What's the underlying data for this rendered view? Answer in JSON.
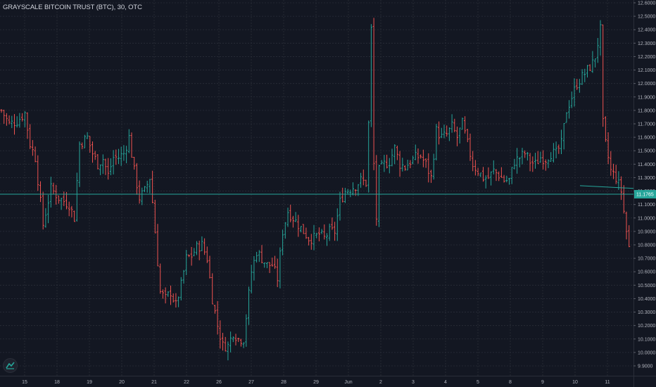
{
  "header": {
    "title": "GRAYSCALE BITCOIN TRUST (BTC), 30, OTC"
  },
  "colors": {
    "background": "#131722",
    "up": "#26a69a",
    "down": "#ef5350",
    "grid": "#2a2e39",
    "price_line": "#26a69a"
  },
  "icons": {
    "logo": "tradingview-logo-icon"
  },
  "chart_data": {
    "type": "ohlc",
    "title": "GRAYSCALE BITCOIN TRUST (BTC), 30, OTC",
    "ylim": [
      9.87,
      12.6
    ],
    "y_ticks": [
      "12.6000",
      "12.5000",
      "12.4000",
      "12.3000",
      "12.2000",
      "12.1000",
      "12.0000",
      "11.9000",
      "11.8000",
      "11.7000",
      "11.6000",
      "11.5000",
      "11.4000",
      "11.3000",
      "11.2000",
      "11.1000",
      "11.0000",
      "10.9000",
      "10.8000",
      "10.7000",
      "10.6000",
      "10.5000",
      "10.4000",
      "10.3000",
      "10.2000",
      "10.1000",
      "10.0000",
      "9.9000"
    ],
    "x_ticks": [
      "15",
      "18",
      "19",
      "20",
      "21",
      "22",
      "26",
      "27",
      "28",
      "29",
      "Jun",
      "2",
      "3",
      "4",
      "5",
      "8",
      "9",
      "10",
      "11"
    ],
    "last_price": "11.1765",
    "last_price_value": 11.1765,
    "grid": true,
    "close_path": [
      [
        0,
        11.8
      ],
      [
        3,
        11.7
      ],
      [
        6,
        11.72
      ],
      [
        9,
        11.78
      ],
      [
        11,
        11.55
      ],
      [
        13,
        11.45
      ],
      [
        16,
        10.95
      ],
      [
        19,
        11.22
      ],
      [
        22,
        11.15
      ],
      [
        26,
        11.1
      ],
      [
        28,
        11.0
      ],
      [
        30,
        11.55
      ],
      [
        33,
        11.6
      ],
      [
        35,
        11.48
      ],
      [
        37,
        11.4
      ],
      [
        39,
        11.44
      ],
      [
        41,
        11.32
      ],
      [
        43,
        11.45
      ],
      [
        45,
        11.45
      ],
      [
        47,
        11.48
      ],
      [
        49,
        11.6
      ],
      [
        51,
        11.35
      ],
      [
        53,
        11.15
      ],
      [
        55,
        11.2
      ],
      [
        57,
        11.3
      ],
      [
        58,
        11.12
      ],
      [
        61,
        10.45
      ],
      [
        63,
        10.4
      ],
      [
        65,
        10.45
      ],
      [
        67,
        10.35
      ],
      [
        69,
        10.5
      ],
      [
        71,
        10.7
      ],
      [
        73,
        10.72
      ],
      [
        75,
        10.78
      ],
      [
        77,
        10.8
      ],
      [
        79,
        10.7
      ],
      [
        81,
        10.4
      ],
      [
        83,
        10.2
      ],
      [
        85,
        10.05
      ],
      [
        87,
        10.05
      ],
      [
        89,
        10.15
      ],
      [
        91,
        10.1
      ],
      [
        93,
        10.1
      ],
      [
        96,
        10.6
      ],
      [
        98,
        10.75
      ],
      [
        100,
        10.7
      ],
      [
        102,
        10.65
      ],
      [
        104,
        10.65
      ],
      [
        106,
        10.55
      ],
      [
        108,
        10.9
      ],
      [
        110,
        11.05
      ],
      [
        112,
        11.0
      ],
      [
        114,
        10.95
      ],
      [
        116,
        10.9
      ],
      [
        118,
        10.85
      ],
      [
        120,
        10.85
      ],
      [
        122,
        10.88
      ],
      [
        124,
        10.85
      ],
      [
        126,
        10.9
      ],
      [
        128,
        10.9
      ],
      [
        130,
        11.12
      ],
      [
        132,
        11.2
      ],
      [
        134,
        11.22
      ],
      [
        136,
        11.24
      ],
      [
        138,
        11.28
      ],
      [
        140,
        11.26
      ],
      [
        141,
        11.7
      ],
      [
        142,
        12.4
      ],
      [
        143,
        11.4
      ],
      [
        144,
        11.0
      ],
      [
        145,
        11.35
      ],
      [
        147,
        11.4
      ],
      [
        149,
        11.42
      ],
      [
        151,
        11.52
      ],
      [
        153,
        11.4
      ],
      [
        155,
        11.38
      ],
      [
        157,
        11.42
      ],
      [
        159,
        11.45
      ],
      [
        161,
        11.46
      ],
      [
        163,
        11.4
      ],
      [
        165,
        11.3
      ],
      [
        167,
        11.65
      ],
      [
        169,
        11.6
      ],
      [
        171,
        11.62
      ],
      [
        173,
        11.68
      ],
      [
        175,
        11.6
      ],
      [
        177,
        11.7
      ],
      [
        179,
        11.55
      ],
      [
        181,
        11.4
      ],
      [
        183,
        11.35
      ],
      [
        185,
        11.3
      ],
      [
        187,
        11.3
      ],
      [
        189,
        11.35
      ],
      [
        191,
        11.32
      ],
      [
        193,
        11.28
      ],
      [
        195,
        11.28
      ],
      [
        197,
        11.42
      ],
      [
        199,
        11.45
      ],
      [
        201,
        11.48
      ],
      [
        203,
        11.42
      ],
      [
        205,
        11.4
      ],
      [
        207,
        11.45
      ],
      [
        209,
        11.44
      ],
      [
        211,
        11.48
      ],
      [
        213,
        11.48
      ],
      [
        215,
        11.55
      ],
      [
        217,
        11.8
      ],
      [
        219,
        11.9
      ],
      [
        221,
        12.0
      ],
      [
        223,
        12.05
      ],
      [
        225,
        12.1
      ],
      [
        227,
        12.15
      ],
      [
        228,
        12.2
      ],
      [
        230,
        12.4
      ],
      [
        231,
        11.7
      ],
      [
        232,
        11.55
      ],
      [
        234,
        11.35
      ],
      [
        236,
        11.3
      ],
      [
        238,
        11.2
      ],
      [
        240,
        10.9
      ],
      [
        241,
        10.78
      ],
      [
        242,
        11.18
      ]
    ]
  }
}
